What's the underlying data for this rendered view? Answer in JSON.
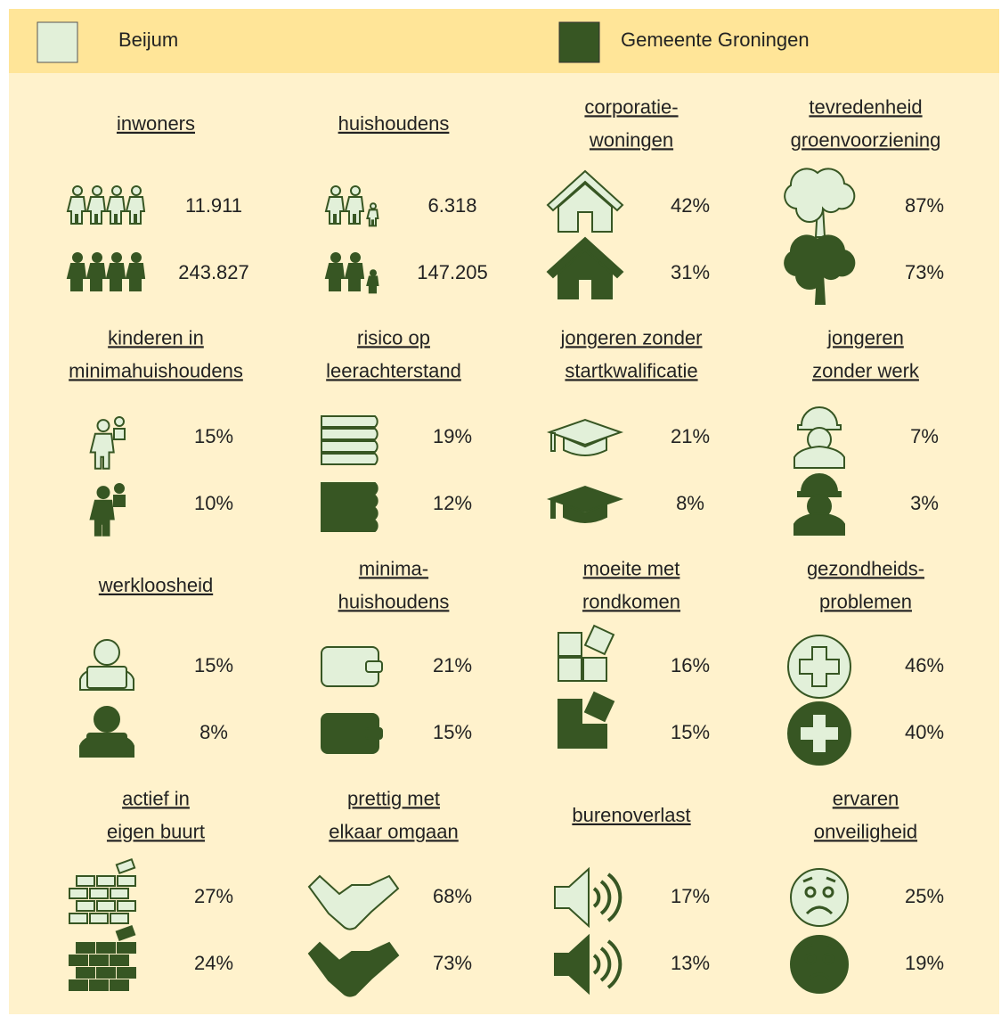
{
  "legend": [
    {
      "label": "Beijum"
    },
    {
      "label": "Gemeente Groningen"
    }
  ],
  "tiles": [
    {
      "title": [
        "inwoners"
      ],
      "beijum": "11.911",
      "groningen": "243.827"
    },
    {
      "title": [
        "huishoudens"
      ],
      "beijum": "6.318",
      "groningen": "147.205"
    },
    {
      "title": [
        "corporatie-",
        "woningen"
      ],
      "beijum": "42%",
      "groningen": "31%"
    },
    {
      "title": [
        "tevredenheid",
        "groenvoorziening"
      ],
      "beijum": "87%",
      "groningen": "73%"
    },
    {
      "title": [
        "kinderen in",
        "minimahuishoudens"
      ],
      "beijum": "15%",
      "groningen": "10%"
    },
    {
      "title": [
        "risico op",
        "leerachterstand"
      ],
      "beijum": "19%",
      "groningen": "12%"
    },
    {
      "title": [
        "jongeren zonder",
        "startkwalificatie"
      ],
      "beijum": "21%",
      "groningen": "8%"
    },
    {
      "title": [
        "jongeren",
        "zonder werk"
      ],
      "beijum": "7%",
      "groningen": "3%"
    },
    {
      "title": [
        "werkloosheid"
      ],
      "beijum": "15%",
      "groningen": "8%"
    },
    {
      "title": [
        "minima-",
        "huishoudens"
      ],
      "beijum": "21%",
      "groningen": "15%"
    },
    {
      "title": [
        "moeite met",
        "rondkomen"
      ],
      "beijum": "16%",
      "groningen": "15%"
    },
    {
      "title": [
        "gezondheids-",
        "problemen"
      ],
      "beijum": "46%",
      "groningen": "40%"
    },
    {
      "title": [
        "actief in",
        "eigen buurt"
      ],
      "beijum": "27%",
      "groningen": "24%"
    },
    {
      "title": [
        "prettig met",
        "elkaar omgaan"
      ],
      "beijum": "68%",
      "groningen": "73%"
    },
    {
      "title": [
        "burenoverlast"
      ],
      "beijum": "17%",
      "groningen": "13%"
    },
    {
      "title": [
        "ervaren",
        "onveiligheid"
      ],
      "beijum": "25%",
      "groningen": "19%"
    }
  ]
}
